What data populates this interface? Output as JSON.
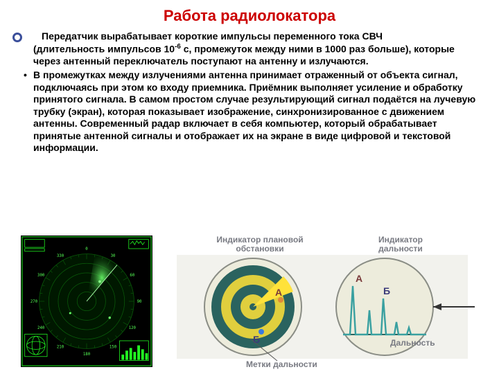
{
  "title": {
    "text": "Работа радиолокатора",
    "color": "#cc0000",
    "fontsize": 22
  },
  "bullet_color": "#3b4f9b",
  "paragraph1": {
    "text_leading_indent": "Передатчик вырабатывает короткие импульсы переменного тока СВЧ",
    "text_rest": "(длительность импульсов 10",
    "exp": "-6",
    "text_after_exp": " с, промежуток между ними в 1000 раз больше), которые через антенный переключатель поступают на антенну и излучаются."
  },
  "paragraph2": {
    "marker": "•",
    "text": "В промежутках между излучениями антенна принимает отраженный от объекта сигнал,  подключаясь при этом ко входу приемника. Приёмник выполняет усиление и обработку принятого сигнала. В самом простом случае результирующий сигнал подаётся на лучевую трубку (экран), которая показывает изображение, синхронизированное с движением антенны. Современный радар включает в себя компьютер, который обрабатывает принятые антенной сигналы и отображает их на экране в виде цифровой и текстовой информации."
  },
  "radar_scope": {
    "bg": "#000000",
    "green_bright": "#34ff34",
    "green_dark": "#0a5a0a",
    "rings": 5,
    "sweep_angle_deg": 30,
    "bearing_labels": [
      "0",
      "30",
      "60",
      "90",
      "120",
      "150",
      "180",
      "210",
      "240",
      "270",
      "300",
      "330"
    ]
  },
  "diagram": {
    "bg": "#f2f2ed",
    "circle_stroke": "#8a8d85",
    "ppi": {
      "label": "Индикатор плановой обстановки",
      "rings_colors": [
        "#2a635f",
        "#e0cf3e",
        "#2a635f",
        "#e0cf3e"
      ],
      "beam_color": "#ffe23a",
      "marker_A": "А",
      "marker_B": "Б",
      "range_marks_label": "Метки дальности",
      "label_color": "#787a82"
    },
    "ascope": {
      "label": "Индикатор дальности",
      "axis_label": "Дальность",
      "trace_color": "#39a0a0",
      "peak_labels": [
        "А",
        "Б"
      ],
      "label_color": "#787a82"
    }
  }
}
